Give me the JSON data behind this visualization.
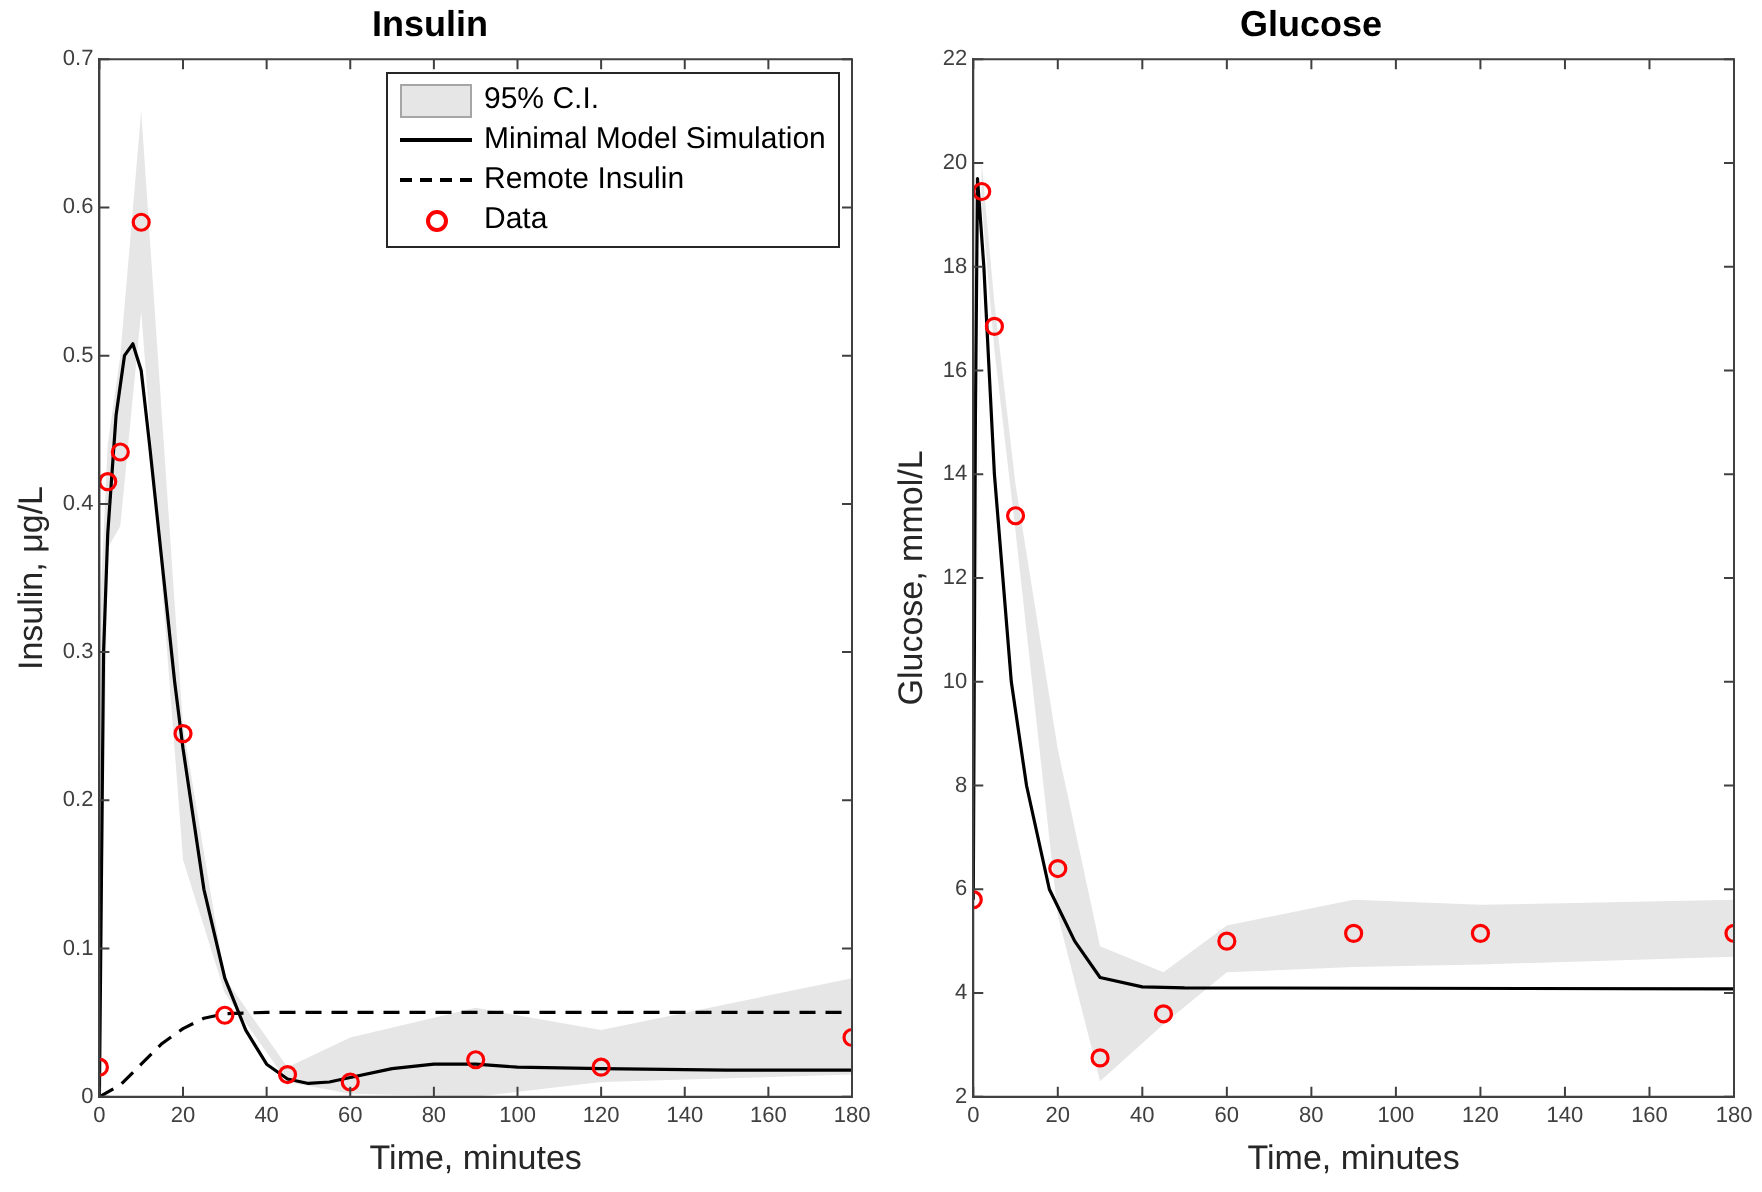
{
  "chart_data": [
    {
      "type": "line",
      "title": "Insulin",
      "xlabel": "Time, minutes",
      "ylabel": "Insulin, μg/L",
      "xlim": [
        0,
        180
      ],
      "xticks": [
        0,
        20,
        40,
        60,
        80,
        100,
        120,
        140,
        160,
        180
      ],
      "ylim": [
        0,
        0.7
      ],
      "yticks": [
        0,
        0.1,
        0.2,
        0.3,
        0.4,
        0.5,
        0.6,
        0.7
      ],
      "legend": "top right",
      "annotations": [
        "95% C.I."
      ],
      "series": [
        {
          "name": "Minimal Model Simulation",
          "type": "line",
          "color": "#000000",
          "x": [
            0,
            1,
            2,
            4,
            6,
            8,
            10,
            12,
            15,
            18,
            20,
            25,
            30,
            35,
            40,
            45,
            50,
            55,
            60,
            70,
            80,
            90,
            100,
            120,
            150,
            180
          ],
          "values": [
            0,
            0.3,
            0.38,
            0.46,
            0.5,
            0.508,
            0.49,
            0.44,
            0.36,
            0.28,
            0.235,
            0.14,
            0.08,
            0.045,
            0.022,
            0.012,
            0.009,
            0.01,
            0.013,
            0.019,
            0.022,
            0.022,
            0.02,
            0.019,
            0.018,
            0.018
          ]
        },
        {
          "name": "Remote Insulin",
          "line_style": "dashed",
          "color": "#000000",
          "x": [
            0,
            5,
            10,
            15,
            20,
            25,
            30,
            40,
            180
          ],
          "values": [
            0,
            0.008,
            0.022,
            0.036,
            0.046,
            0.053,
            0.056,
            0.057,
            0.057
          ]
        },
        {
          "name": "Data",
          "type": "scatter",
          "marker": "circle",
          "color": "#ff0000",
          "x": [
            0,
            2,
            5,
            10,
            20,
            30,
            45,
            60,
            90,
            120,
            180
          ],
          "values": [
            0.02,
            0.415,
            0.435,
            0.59,
            0.245,
            0.055,
            0.015,
            0.01,
            0.025,
            0.02,
            0.04
          ],
          "lower": [
            0,
            0.37,
            0.385,
            0.53,
            0.16,
            0.07,
            0.01,
            0.002,
            0,
            0.01,
            0.015
          ],
          "upper": [
            0.32,
            0.44,
            0.5,
            0.665,
            0.25,
            0.08,
            0.02,
            0.04,
            0.06,
            0.045,
            0.08
          ]
        }
      ]
    },
    {
      "type": "line",
      "title": "Glucose",
      "xlabel": "Time, minutes",
      "ylabel": "Glucose, mmol/L",
      "xlim": [
        0,
        180
      ],
      "xticks": [
        0,
        20,
        40,
        60,
        80,
        100,
        120,
        140,
        160,
        180
      ],
      "ylim": [
        2,
        22
      ],
      "yticks": [
        2,
        4,
        6,
        8,
        10,
        12,
        14,
        16,
        18,
        20,
        22
      ],
      "series": [
        {
          "color": "#000000",
          "x": [
            0,
            0.5,
            1,
            2.5,
            5,
            7,
            9,
            12.6,
            18,
            24,
            30,
            40,
            50,
            180
          ],
          "values": [
            5.8,
            15,
            19.7,
            18,
            14,
            12,
            10,
            8,
            6,
            5,
            4.3,
            4.12,
            4.1,
            4.08
          ]
        },
        {
          "type": "scatter",
          "marker": "circle",
          "color": "#ff0000",
          "x": [
            0,
            2,
            5,
            10,
            20,
            30,
            45,
            60,
            90,
            120,
            180
          ],
          "values": [
            5.8,
            19.45,
            16.85,
            13.2,
            6.4,
            2.75,
            3.6,
            5,
            5.15,
            5.15,
            5.15
          ],
          "lower": [
            5.6,
            19.2,
            16.4,
            12.9,
            5.5,
            2.3,
            3.4,
            4.4,
            4.5,
            4.55,
            4.7
          ],
          "upper": [
            6,
            20,
            17.3,
            13.8,
            8.7,
            4.9,
            4.4,
            5.3,
            5.8,
            5.7,
            5.8
          ]
        }
      ]
    }
  ]
}
